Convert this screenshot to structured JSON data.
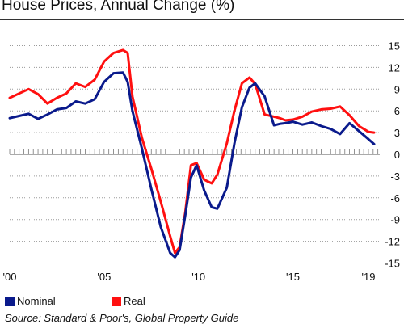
{
  "chart_data": {
    "type": "line",
    "title": "House Prices, Annual Change (%)",
    "xlabel": "",
    "ylabel": "",
    "x_tick_labels": [
      {
        "x": 2000,
        "label": "'00"
      },
      {
        "x": 2005,
        "label": "'05"
      },
      {
        "x": 2010,
        "label": "'10"
      },
      {
        "x": 2015,
        "label": "'15"
      },
      {
        "x": 2019,
        "label": "'19"
      }
    ],
    "y_ticks": [
      15,
      12,
      9,
      6,
      3,
      0,
      -3,
      -6,
      -9,
      -12,
      -15
    ],
    "y_tick_labels": [
      "15",
      "12",
      "9",
      "6",
      "3",
      "0",
      "-3",
      "-6",
      "-9",
      "-12",
      "-15"
    ],
    "xlim": [
      2000,
      2019.6
    ],
    "ylim": [
      -15.5,
      15.5
    ],
    "y_axis_side": "right",
    "grid": "horizontal dotted",
    "legend_position": "bottom-left",
    "source": "Source: Standard & Poor's, Global Property Guide",
    "series": [
      {
        "name": "Nominal",
        "color": "#0a1a8c",
        "x": [
          2000.0,
          2000.5,
          2001.0,
          2001.5,
          2002.0,
          2002.5,
          2003.0,
          2003.5,
          2004.0,
          2004.5,
          2005.0,
          2005.5,
          2006.0,
          2006.25,
          2006.5,
          2007.0,
          2007.5,
          2008.0,
          2008.5,
          2008.75,
          2009.0,
          2009.3,
          2009.6,
          2009.9,
          2010.3,
          2010.7,
          2011.0,
          2011.5,
          2011.9,
          2012.3,
          2012.7,
          2013.0,
          2013.5,
          2014.0,
          2014.3,
          2014.6,
          2015.0,
          2015.5,
          2016.0,
          2016.5,
          2017.0,
          2017.5,
          2018.0,
          2018.5,
          2019.0,
          2019.3
        ],
        "values": [
          5.0,
          5.3,
          5.6,
          4.9,
          5.5,
          6.2,
          6.4,
          7.3,
          7.0,
          7.6,
          10.0,
          11.2,
          11.3,
          10.0,
          6.0,
          0.8,
          -4.8,
          -10.0,
          -13.6,
          -14.2,
          -13.2,
          -8.4,
          -3.2,
          -1.5,
          -5.0,
          -7.3,
          -7.5,
          -4.6,
          1.5,
          6.5,
          9.2,
          9.8,
          8.0,
          4.0,
          4.2,
          4.3,
          4.5,
          4.1,
          4.4,
          3.9,
          3.5,
          2.8,
          4.3,
          3.2,
          2.1,
          1.4
        ]
      },
      {
        "name": "Real",
        "color": "#ff1010",
        "x": [
          2000.0,
          2000.5,
          2001.0,
          2001.5,
          2002.0,
          2002.5,
          2003.0,
          2003.5,
          2004.0,
          2004.5,
          2005.0,
          2005.5,
          2006.0,
          2006.25,
          2006.5,
          2007.0,
          2007.5,
          2008.0,
          2008.5,
          2008.75,
          2009.0,
          2009.3,
          2009.6,
          2009.9,
          2010.3,
          2010.7,
          2011.0,
          2011.5,
          2011.9,
          2012.3,
          2012.7,
          2013.0,
          2013.5,
          2014.0,
          2014.3,
          2014.6,
          2015.0,
          2015.5,
          2016.0,
          2016.5,
          2017.0,
          2017.5,
          2018.0,
          2018.5,
          2019.0,
          2019.3
        ],
        "values": [
          7.8,
          8.4,
          9.0,
          8.3,
          7.0,
          7.8,
          8.4,
          9.8,
          9.3,
          10.3,
          12.8,
          14.0,
          14.4,
          14.0,
          8.0,
          2.3,
          -2.0,
          -6.5,
          -11.3,
          -13.6,
          -12.8,
          -8.0,
          -1.5,
          -1.2,
          -3.5,
          -4.0,
          -2.8,
          1.5,
          6.0,
          9.8,
          10.6,
          9.7,
          5.5,
          5.2,
          5.0,
          4.7,
          4.8,
          5.2,
          5.9,
          6.2,
          6.3,
          6.6,
          5.4,
          3.9,
          3.1,
          3.0
        ]
      }
    ]
  }
}
